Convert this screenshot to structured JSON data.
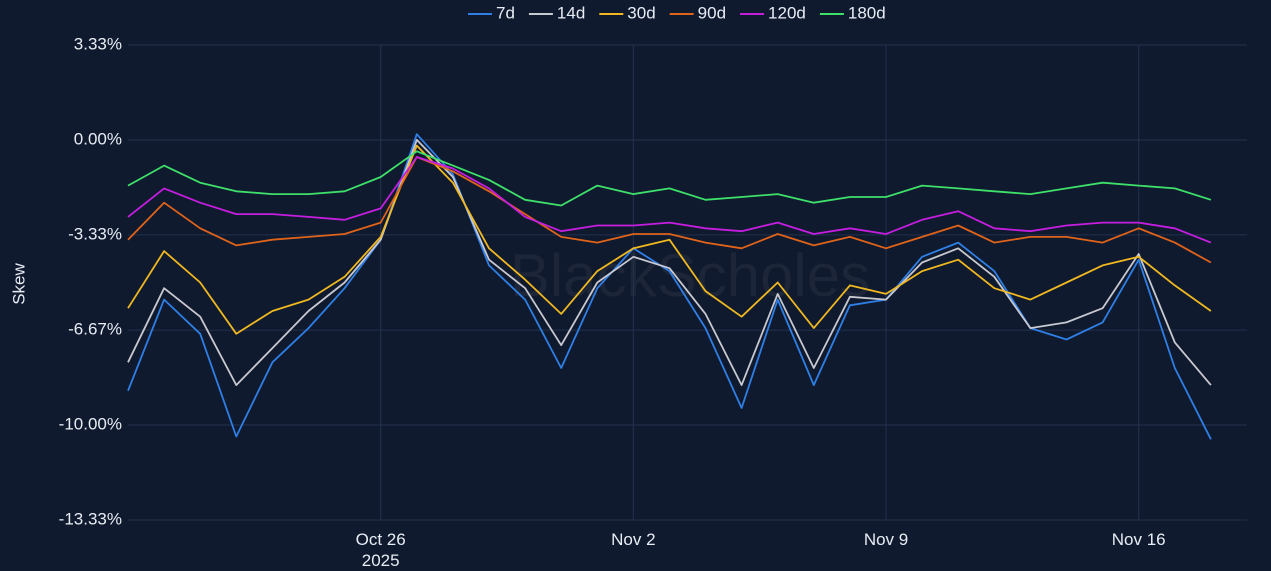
{
  "chart_data": {
    "type": "line",
    "y_label": "Skew",
    "watermark": "BlackScholes",
    "x": [
      "2025-10-19",
      "2025-10-20",
      "2025-10-21",
      "2025-10-22",
      "2025-10-23",
      "2025-10-24",
      "2025-10-25",
      "2025-10-26",
      "2025-10-27",
      "2025-10-28",
      "2025-10-29",
      "2025-10-30",
      "2025-10-31",
      "2025-11-01",
      "2025-11-02",
      "2025-11-03",
      "2025-11-04",
      "2025-11-05",
      "2025-11-06",
      "2025-11-07",
      "2025-11-08",
      "2025-11-09",
      "2025-11-10",
      "2025-11-11",
      "2025-11-12",
      "2025-11-13",
      "2025-11-14",
      "2025-11-15",
      "2025-11-16",
      "2025-11-17",
      "2025-11-18"
    ],
    "series": [
      {
        "name": "7d",
        "color": "#2f7fe6",
        "values": [
          -8.8,
          -5.6,
          -6.8,
          -10.4,
          -7.8,
          -6.6,
          -5.2,
          -3.5,
          0.2,
          -1.2,
          -4.4,
          -5.6,
          -8.0,
          -5.2,
          -3.8,
          -4.6,
          -6.6,
          -9.4,
          -5.6,
          -8.6,
          -5.8,
          -5.6,
          -4.1,
          -3.6,
          -4.6,
          -6.6,
          -7.0,
          -6.4,
          -4.2,
          -8.0,
          -10.5
        ]
      },
      {
        "name": "14d",
        "color": "#c8c8d0",
        "values": [
          -7.8,
          -5.2,
          -6.2,
          -8.6,
          -7.3,
          -6.0,
          -5.0,
          -3.5,
          0.0,
          -1.3,
          -4.2,
          -5.2,
          -7.2,
          -5.0,
          -4.1,
          -4.5,
          -6.1,
          -8.6,
          -5.4,
          -8.0,
          -5.5,
          -5.6,
          -4.3,
          -3.8,
          -4.8,
          -6.6,
          -6.4,
          -5.9,
          -4.0,
          -7.1,
          -8.6
        ]
      },
      {
        "name": "30d",
        "color": "#f0b820",
        "values": [
          -5.9,
          -3.9,
          -5.0,
          -6.8,
          -6.0,
          -5.6,
          -4.8,
          -3.4,
          -0.2,
          -1.5,
          -3.8,
          -4.9,
          -6.1,
          -4.6,
          -3.8,
          -3.5,
          -5.3,
          -6.2,
          -5.0,
          -6.6,
          -5.1,
          -5.4,
          -4.6,
          -4.2,
          -5.2,
          -5.6,
          -5.0,
          -4.4,
          -4.1,
          -5.1,
          -6.0
        ]
      },
      {
        "name": "90d",
        "color": "#e0631a",
        "values": [
          -3.5,
          -2.2,
          -3.1,
          -3.7,
          -3.5,
          -3.4,
          -3.3,
          -2.9,
          -0.6,
          -1.1,
          -1.8,
          -2.6,
          -3.4,
          -3.6,
          -3.3,
          -3.3,
          -3.6,
          -3.8,
          -3.3,
          -3.7,
          -3.4,
          -3.8,
          -3.4,
          -3.0,
          -3.6,
          -3.4,
          -3.4,
          -3.6,
          -3.1,
          -3.6,
          -4.3
        ]
      },
      {
        "name": "120d",
        "color": "#c61ee0",
        "values": [
          -2.7,
          -1.7,
          -2.2,
          -2.6,
          -2.6,
          -2.7,
          -2.8,
          -2.4,
          -0.6,
          -1.0,
          -1.7,
          -2.7,
          -3.2,
          -3.0,
          -3.0,
          -2.9,
          -3.1,
          -3.2,
          -2.9,
          -3.3,
          -3.1,
          -3.3,
          -2.8,
          -2.5,
          -3.1,
          -3.2,
          -3.0,
          -2.9,
          -2.9,
          -3.1,
          -3.6
        ]
      },
      {
        "name": "180d",
        "color": "#3ee06a",
        "values": [
          -1.6,
          -0.9,
          -1.5,
          -1.8,
          -1.9,
          -1.9,
          -1.8,
          -1.3,
          -0.4,
          -0.9,
          -1.4,
          -2.1,
          -2.3,
          -1.6,
          -1.9,
          -1.7,
          -2.1,
          -2.0,
          -1.9,
          -2.2,
          -2.0,
          -2.0,
          -1.6,
          -1.7,
          -1.8,
          -1.9,
          -1.7,
          -1.5,
          -1.6,
          -1.7,
          -2.1
        ]
      }
    ],
    "xlim": [
      "2025-10-19",
      "2025-11-19"
    ],
    "xticks": [
      {
        "value": "2025-10-26",
        "label": "Oct 26\n2025"
      },
      {
        "value": "2025-11-02",
        "label": "Nov 2"
      },
      {
        "value": "2025-11-09",
        "label": "Nov 9"
      },
      {
        "value": "2025-11-16",
        "label": "Nov 16"
      }
    ],
    "ylim": [
      -13.33,
      3.33
    ],
    "yticks": [
      {
        "value": 3.33,
        "label": "3.33%"
      },
      {
        "value": 0,
        "label": "0.00%"
      },
      {
        "value": -3.33,
        "label": "-3.33%"
      },
      {
        "value": -6.67,
        "label": "-6.67%"
      },
      {
        "value": -10,
        "label": "-10.00%"
      },
      {
        "value": -13.33,
        "label": "-13.33%"
      }
    ],
    "grid": true
  }
}
